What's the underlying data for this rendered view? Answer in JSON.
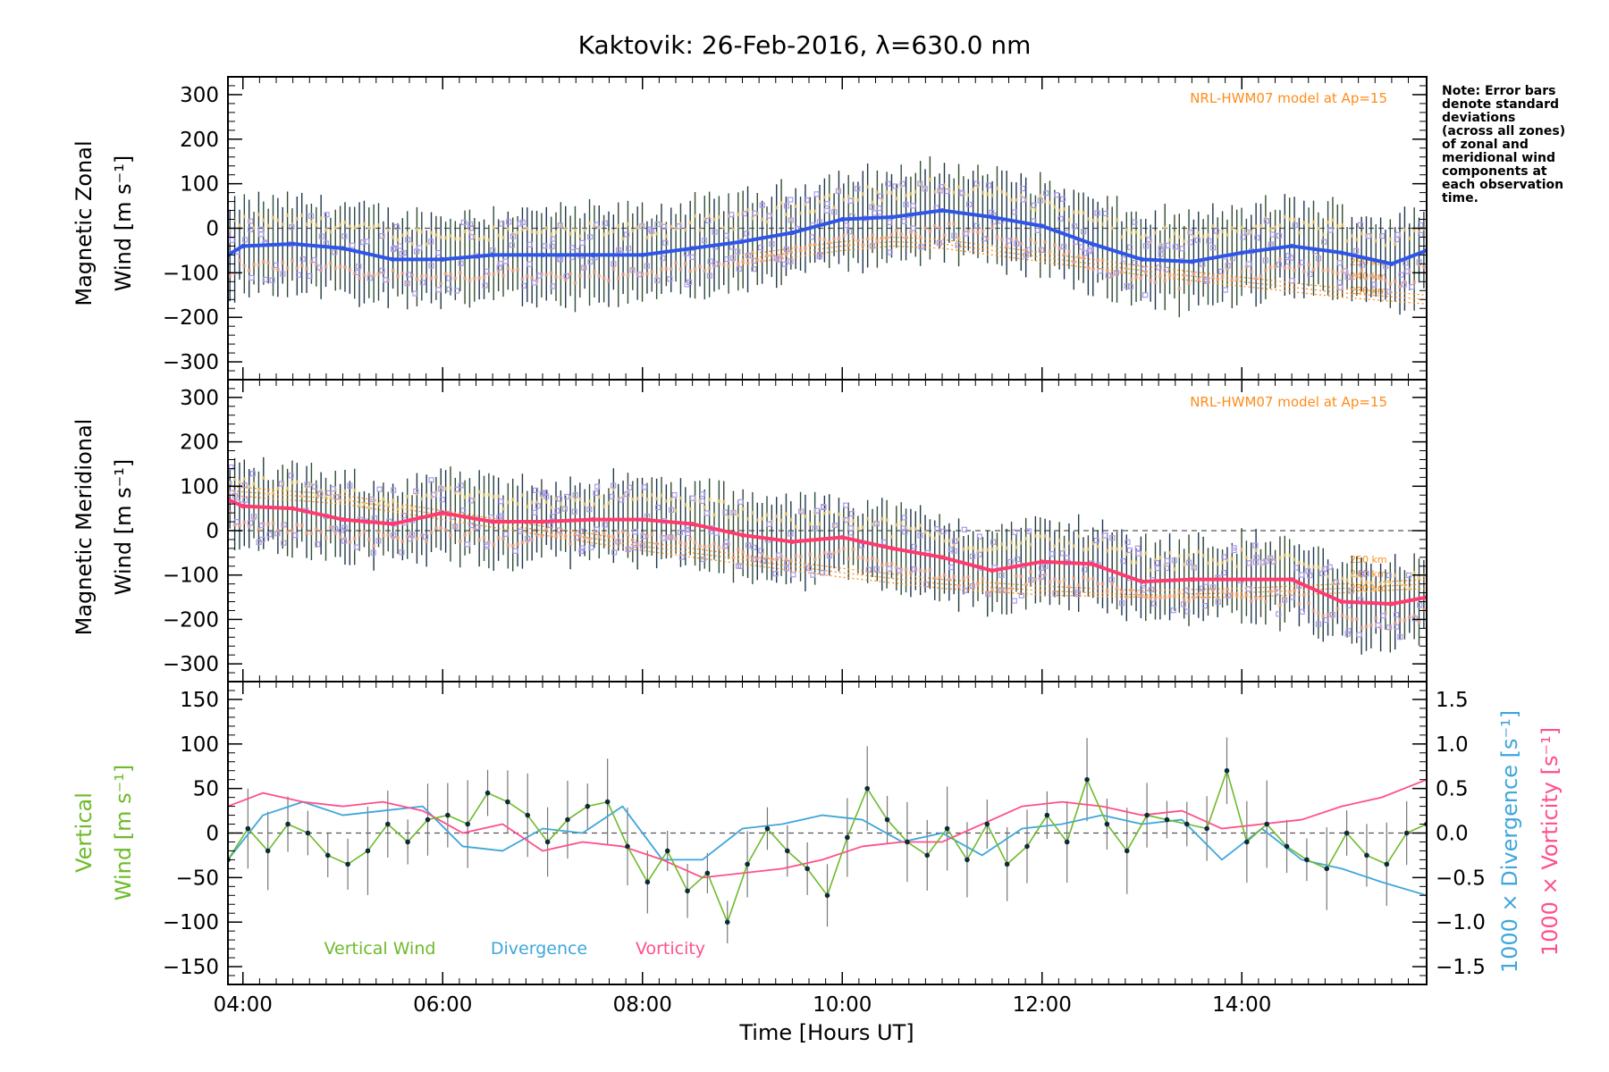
{
  "title": "Kaktovik: 26-Feb-2016, λ=630.0 nm",
  "note_lines": [
    "Note: Error bars",
    "denote standard",
    "deviations",
    "(across all zones)",
    "of zonal and",
    "meridional wind",
    "components at",
    "each observation",
    "time."
  ],
  "model_label": "NRL-HWM07 model at Ap=15",
  "alt_labels": [
    "250 km",
    "240 km",
    "230 km"
  ],
  "colors": {
    "zonal": "#2f55e8",
    "meridional": "#ff3a6e",
    "vertical": "#6dbb2a",
    "divergence": "#3fa6db",
    "vorticity": "#ff4f8a",
    "model": "#ff8c1a",
    "zone_points": "#a99be6",
    "error_bar": "#1f3a44"
  },
  "chart_data": [
    {
      "type": "line",
      "panel": "zonal",
      "ylabel_lines": [
        "Magnetic Zonal",
        "Wind [m s⁻¹]"
      ],
      "xlim": [
        3.85,
        15.85
      ],
      "ylim": [
        -340,
        340
      ],
      "yticks": [
        -300,
        -200,
        -100,
        0,
        100,
        200,
        300
      ],
      "grid": false,
      "series": [
        {
          "x": [
            3.85,
            4.0,
            4.5,
            5.0,
            5.5,
            6.0,
            6.5,
            7.0,
            7.5,
            8.0,
            8.5,
            9.0,
            9.5,
            10.0,
            10.5,
            11.0,
            11.5,
            12.0,
            12.5,
            13.0,
            13.5,
            14.0,
            14.5,
            15.0,
            15.5,
            15.85
          ],
          "y": [
            -60,
            -40,
            -35,
            -45,
            -70,
            -70,
            -60,
            -60,
            -60,
            -60,
            -45,
            -30,
            -10,
            20,
            25,
            40,
            25,
            5,
            -35,
            -70,
            -75,
            -55,
            -40,
            -55,
            -80,
            -50
          ]
        }
      ],
      "error_bar_halfwidth": [
        70,
        120
      ],
      "model_curves": [
        {
          "x": [
            9.0,
            10.0,
            10.5,
            11.0,
            12.0,
            13.0,
            14.0,
            15.0,
            15.85
          ],
          "y": [
            -60,
            -30,
            -20,
            -25,
            -55,
            -85,
            -110,
            -135,
            -150
          ]
        },
        {
          "x": [
            9.0,
            10.0,
            10.5,
            11.0,
            12.0,
            13.0,
            14.0,
            15.0,
            15.85
          ],
          "y": [
            -70,
            -40,
            -30,
            -35,
            -65,
            -95,
            -120,
            -145,
            -160
          ]
        },
        {
          "x": [
            9.0,
            10.0,
            10.5,
            11.0,
            12.0,
            13.0,
            14.0,
            15.0,
            15.85
          ],
          "y": [
            -80,
            -50,
            -40,
            -45,
            -75,
            -105,
            -130,
            -155,
            -170
          ]
        }
      ]
    },
    {
      "type": "line",
      "panel": "meridional",
      "ylabel_lines": [
        "Magnetic Meridional",
        "Wind [m s⁻¹]"
      ],
      "xlim": [
        3.85,
        15.85
      ],
      "ylim": [
        -340,
        340
      ],
      "yticks": [
        -300,
        -200,
        -100,
        0,
        100,
        200,
        300
      ],
      "grid": false,
      "series": [
        {
          "x": [
            3.85,
            4.0,
            4.5,
            5.0,
            5.5,
            6.0,
            6.5,
            7.0,
            7.5,
            8.0,
            8.5,
            9.0,
            9.5,
            10.0,
            10.5,
            11.0,
            11.5,
            12.0,
            12.5,
            13.0,
            13.5,
            14.0,
            14.5,
            15.0,
            15.5,
            15.85
          ],
          "y": [
            70,
            55,
            50,
            25,
            15,
            40,
            20,
            20,
            25,
            25,
            15,
            -10,
            -25,
            -15,
            -40,
            -60,
            -90,
            -70,
            -75,
            -115,
            -110,
            -110,
            -110,
            -160,
            -165,
            -150
          ]
        }
      ],
      "error_bar_halfwidth": [
        60,
        110
      ],
      "model_curves": [
        {
          "x": [
            3.85,
            5.0,
            6.0,
            7.0,
            8.0,
            9.0,
            10.0,
            11.0,
            12.0,
            13.0,
            14.0,
            15.0,
            15.85
          ],
          "y": [
            100,
            80,
            45,
            10,
            -25,
            -55,
            -85,
            -110,
            -125,
            -135,
            -130,
            -120,
            -110
          ]
        },
        {
          "x": [
            3.85,
            5.0,
            6.0,
            7.0,
            8.0,
            9.0,
            10.0,
            11.0,
            12.0,
            13.0,
            14.0,
            15.0,
            15.85
          ],
          "y": [
            90,
            70,
            35,
            0,
            -35,
            -65,
            -95,
            -120,
            -135,
            -145,
            -140,
            -130,
            -120
          ]
        },
        {
          "x": [
            3.85,
            5.0,
            6.0,
            7.0,
            8.0,
            9.0,
            10.0,
            11.0,
            12.0,
            13.0,
            14.0,
            15.0,
            15.85
          ],
          "y": [
            80,
            60,
            25,
            -10,
            -45,
            -75,
            -105,
            -130,
            -145,
            -150,
            -150,
            -140,
            -130
          ]
        }
      ]
    },
    {
      "type": "line",
      "panel": "vertical",
      "ylabel_lines": [
        "Vertical",
        "Wind [m s⁻¹]"
      ],
      "y2label_lines": [
        "1000 × Divergence [s⁻¹]",
        "1000 × Vorticity [s⁻¹]"
      ],
      "xlabel": "Time [Hours UT]",
      "xticks": [
        4,
        6,
        8,
        10,
        12,
        14
      ],
      "xticklabels": [
        "04:00",
        "06:00",
        "08:00",
        "10:00",
        "12:00",
        "14:00"
      ],
      "xlim": [
        3.85,
        15.85
      ],
      "ylim": [
        -170,
        170
      ],
      "yticks": [
        -150,
        -100,
        -50,
        0,
        50,
        100,
        150
      ],
      "y2lim": [
        -1.7,
        1.7
      ],
      "y2ticks": [
        -1.5,
        -1.0,
        -0.5,
        0.0,
        0.5,
        1.0,
        1.5
      ],
      "y2ticklabels": [
        "−1.5",
        "−1.0",
        "−0.5",
        "0.0",
        "0.5",
        "1.0",
        "1.5"
      ],
      "legend": [
        "Vertical Wind",
        "Divergence",
        "Vorticity"
      ],
      "legend_placement": "bottom-left",
      "grid": false,
      "series": [
        {
          "name": "Vertical Wind",
          "x": [
            3.85,
            4.05,
            4.25,
            4.45,
            4.65,
            4.85,
            5.05,
            5.25,
            5.45,
            5.65,
            5.85,
            6.05,
            6.25,
            6.45,
            6.65,
            6.85,
            7.05,
            7.25,
            7.45,
            7.65,
            7.85,
            8.05,
            8.25,
            8.45,
            8.65,
            8.85,
            9.05,
            9.25,
            9.45,
            9.65,
            9.85,
            10.05,
            10.25,
            10.45,
            10.65,
            10.85,
            11.05,
            11.25,
            11.45,
            11.65,
            11.85,
            12.05,
            12.25,
            12.45,
            12.65,
            12.85,
            13.05,
            13.25,
            13.45,
            13.65,
            13.85,
            14.05,
            14.25,
            14.45,
            14.65,
            14.85,
            15.05,
            15.25,
            15.45,
            15.65,
            15.85
          ],
          "y": [
            -30,
            5,
            -20,
            10,
            0,
            -25,
            -35,
            -20,
            10,
            -10,
            15,
            20,
            10,
            45,
            35,
            20,
            -10,
            15,
            30,
            35,
            -15,
            -55,
            -20,
            -65,
            -45,
            -100,
            -35,
            5,
            -20,
            -40,
            -70,
            -5,
            50,
            15,
            -10,
            -25,
            5,
            -30,
            10,
            -35,
            -15,
            20,
            -10,
            60,
            10,
            -20,
            20,
            15,
            10,
            5,
            70,
            -10,
            10,
            -15,
            -30,
            -40,
            0,
            -25,
            -35,
            0,
            10
          ]
        },
        {
          "name": "Divergence",
          "x": [
            3.85,
            4.2,
            4.6,
            5.0,
            5.4,
            5.8,
            6.2,
            6.6,
            7.0,
            7.4,
            7.8,
            8.2,
            8.6,
            9.0,
            9.4,
            9.8,
            10.2,
            10.6,
            11.0,
            11.4,
            11.8,
            12.2,
            12.6,
            13.0,
            13.4,
            13.8,
            14.2,
            14.6,
            15.0,
            15.4,
            15.85
          ],
          "y": [
            -0.3,
            0.2,
            0.35,
            0.2,
            0.25,
            0.3,
            -0.15,
            -0.2,
            0.05,
            0.0,
            0.3,
            -0.3,
            -0.3,
            0.05,
            0.1,
            0.2,
            0.15,
            -0.1,
            0.0,
            -0.25,
            0.05,
            0.1,
            0.2,
            0.1,
            0.15,
            -0.3,
            0.05,
            -0.3,
            -0.4,
            -0.55,
            -0.7
          ]
        },
        {
          "name": "Vorticity",
          "x": [
            3.85,
            4.2,
            4.6,
            5.0,
            5.4,
            5.8,
            6.2,
            6.6,
            7.0,
            7.4,
            7.8,
            8.2,
            8.6,
            9.0,
            9.4,
            9.8,
            10.2,
            10.6,
            11.0,
            11.4,
            11.8,
            12.2,
            12.6,
            13.0,
            13.4,
            13.8,
            14.2,
            14.6,
            15.0,
            15.4,
            15.85
          ],
          "y": [
            0.3,
            0.45,
            0.35,
            0.3,
            0.35,
            0.25,
            0.0,
            0.1,
            -0.2,
            -0.1,
            -0.15,
            -0.3,
            -0.5,
            -0.45,
            -0.4,
            -0.3,
            -0.15,
            -0.1,
            -0.1,
            0.1,
            0.3,
            0.35,
            0.3,
            0.2,
            0.25,
            0.05,
            0.1,
            0.15,
            0.3,
            0.4,
            0.6
          ]
        }
      ]
    }
  ]
}
